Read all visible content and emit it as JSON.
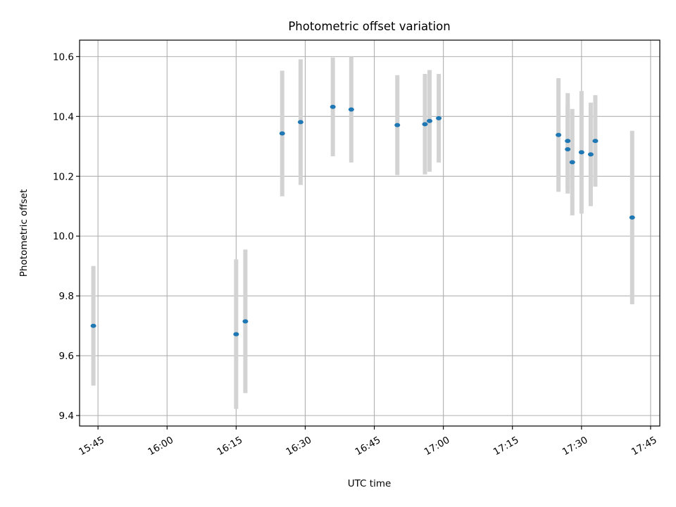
{
  "chart_data": {
    "type": "scatter",
    "title": "Photometric offset variation",
    "xlabel": "UTC time",
    "ylabel": "Photometric offset",
    "grid": true,
    "ylim": [
      9.365,
      10.655
    ],
    "xlim": [
      "15:41",
      "17:47"
    ],
    "x_ticks": [
      "15:45",
      "16:00",
      "16:15",
      "16:30",
      "16:45",
      "17:00",
      "17:15",
      "17:30",
      "17:45"
    ],
    "y_ticks": [
      9.4,
      9.6,
      9.8,
      10.0,
      10.2,
      10.4,
      10.6
    ],
    "y_tick_labels": [
      "9.4",
      "9.6",
      "9.8",
      "10.0",
      "10.2",
      "10.4",
      "10.6"
    ],
    "colors": {
      "marker": "#1f77b4",
      "errorbar": "#d3d3d3",
      "grid": "#b0b0b0"
    },
    "points": [
      {
        "x": "15:44",
        "y": 9.7,
        "err": 0.2
      },
      {
        "x": "16:15",
        "y": 9.672,
        "err": 0.25
      },
      {
        "x": "16:17",
        "y": 9.715,
        "err": 0.24
      },
      {
        "x": "16:25",
        "y": 10.343,
        "err": 0.21
      },
      {
        "x": "16:29",
        "y": 10.381,
        "err": 0.21
      },
      {
        "x": "16:36",
        "y": 10.432,
        "err": 0.165
      },
      {
        "x": "16:40",
        "y": 10.423,
        "err": 0.177
      },
      {
        "x": "16:50",
        "y": 10.371,
        "err": 0.167
      },
      {
        "x": "16:56",
        "y": 10.374,
        "err": 0.168
      },
      {
        "x": "16:57",
        "y": 10.385,
        "err": 0.17
      },
      {
        "x": "16:59",
        "y": 10.394,
        "err": 0.148
      },
      {
        "x": "17:25",
        "y": 10.338,
        "err": 0.19
      },
      {
        "x": "17:27",
        "y": 10.318,
        "err": 0.16
      },
      {
        "x": "17:27",
        "y": 10.29,
        "err": 0.148
      },
      {
        "x": "17:28",
        "y": 10.247,
        "err": 0.178
      },
      {
        "x": "17:30",
        "y": 10.28,
        "err": 0.205
      },
      {
        "x": "17:32",
        "y": 10.273,
        "err": 0.173
      },
      {
        "x": "17:33",
        "y": 10.318,
        "err": 0.153
      },
      {
        "x": "17:41",
        "y": 10.062,
        "err": 0.29
      }
    ]
  }
}
